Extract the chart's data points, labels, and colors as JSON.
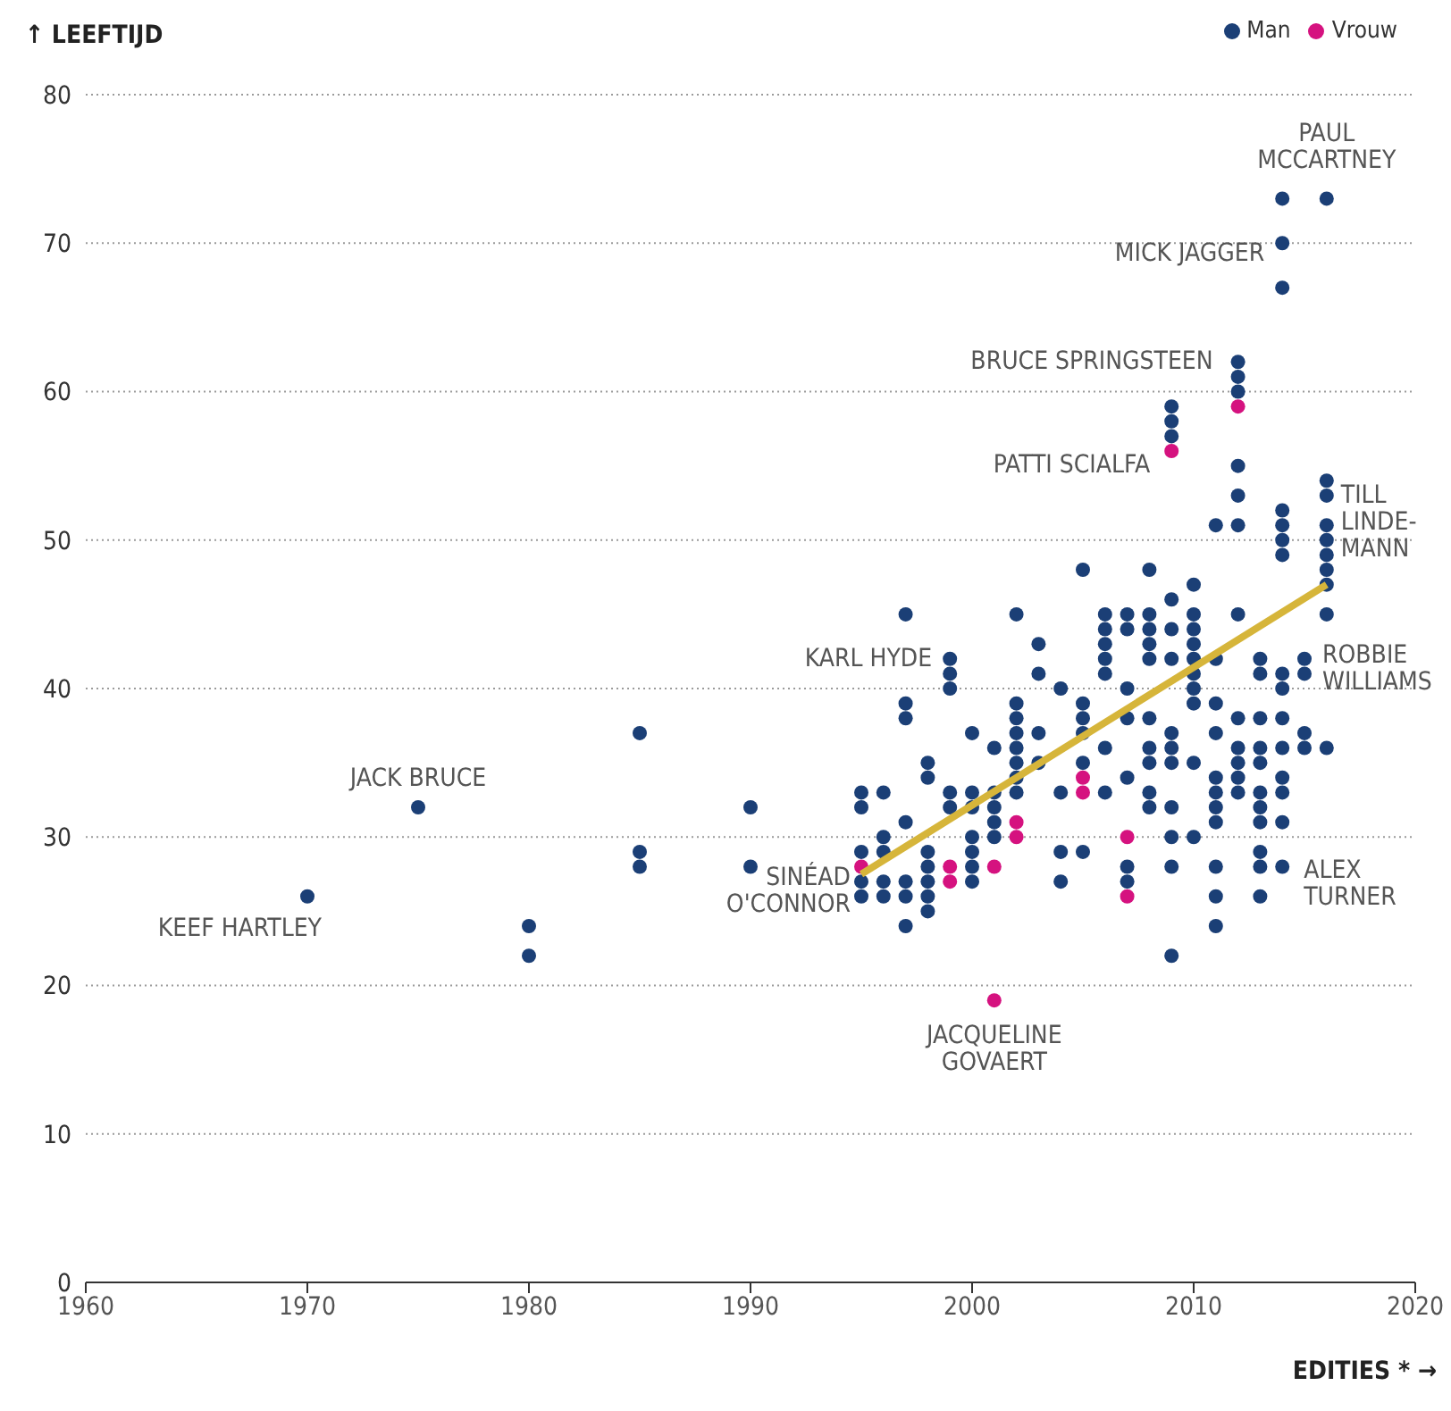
{
  "chart_data": {
    "type": "scatter",
    "xlabel": "EDITIES * →",
    "ylabel": "↑ LEEFTIJD",
    "xlim": [
      1960,
      2020
    ],
    "xticks": [
      1960,
      1970,
      1980,
      1990,
      2000,
      2010,
      2020
    ],
    "ylim": [
      0,
      80
    ],
    "yticks": [
      0,
      10,
      20,
      30,
      40,
      50,
      60,
      70,
      80
    ],
    "grid": "y",
    "legend": "top right",
    "marker": "circle",
    "series": [
      {
        "name": "Man",
        "color": "#1b3f76",
        "x": [
          1970,
          1975,
          1980,
          1980,
          1985,
          1985,
          1985,
          1990,
          1990,
          1995,
          1995,
          1995,
          1995,
          1995,
          1996,
          1996,
          1996,
          1996,
          1996,
          1997,
          1997,
          1997,
          1997,
          1997,
          1997,
          1997,
          1998,
          1998,
          1998,
          1998,
          1998,
          1998,
          1998,
          1999,
          1999,
          1999,
          1999,
          1999,
          2000,
          2000,
          2000,
          2000,
          2000,
          2000,
          2000,
          2001,
          2001,
          2001,
          2001,
          2001,
          2002,
          2002,
          2002,
          2002,
          2002,
          2002,
          2002,
          2002,
          2003,
          2003,
          2003,
          2003,
          2004,
          2004,
          2004,
          2004,
          2005,
          2005,
          2005,
          2005,
          2005,
          2005,
          2006,
          2006,
          2006,
          2006,
          2006,
          2006,
          2006,
          2007,
          2007,
          2007,
          2007,
          2007,
          2007,
          2007,
          2008,
          2008,
          2008,
          2008,
          2008,
          2008,
          2008,
          2008,
          2008,
          2008,
          2009,
          2009,
          2009,
          2009,
          2009,
          2009,
          2009,
          2009,
          2009,
          2009,
          2009,
          2009,
          2009,
          2010,
          2010,
          2010,
          2010,
          2010,
          2010,
          2010,
          2010,
          2010,
          2010,
          2011,
          2011,
          2011,
          2011,
          2011,
          2011,
          2011,
          2011,
          2011,
          2011,
          2011,
          2012,
          2012,
          2012,
          2012,
          2012,
          2012,
          2012,
          2012,
          2012,
          2012,
          2012,
          2012,
          2013,
          2013,
          2013,
          2013,
          2013,
          2013,
          2013,
          2013,
          2013,
          2013,
          2013,
          2014,
          2014,
          2014,
          2014,
          2014,
          2014,
          2014,
          2014,
          2014,
          2014,
          2014,
          2014,
          2014,
          2014,
          2014,
          2015,
          2015,
          2015,
          2015,
          2016,
          2016,
          2016,
          2016,
          2016,
          2016,
          2016,
          2016,
          2016,
          2016
        ],
        "values": [
          26,
          32,
          24,
          22,
          37,
          29,
          28,
          32,
          28,
          33,
          32,
          29,
          27,
          26,
          33,
          30,
          29,
          27,
          26,
          45,
          39,
          38,
          31,
          27,
          26,
          24,
          35,
          34,
          29,
          28,
          27,
          26,
          25,
          42,
          41,
          40,
          33,
          32,
          37,
          33,
          32,
          30,
          29,
          28,
          27,
          36,
          33,
          32,
          31,
          30,
          45,
          39,
          38,
          37,
          36,
          35,
          34,
          33,
          43,
          41,
          37,
          35,
          40,
          33,
          29,
          27,
          48,
          39,
          38,
          37,
          35,
          29,
          45,
          44,
          43,
          42,
          41,
          36,
          33,
          45,
          44,
          40,
          38,
          34,
          28,
          27,
          48,
          45,
          44,
          43,
          42,
          38,
          36,
          35,
          33,
          32,
          59,
          58,
          57,
          46,
          44,
          42,
          37,
          36,
          35,
          32,
          30,
          28,
          22,
          47,
          45,
          44,
          43,
          42,
          41,
          40,
          39,
          35,
          30,
          51,
          42,
          39,
          37,
          34,
          33,
          32,
          31,
          28,
          26,
          24,
          62,
          61,
          60,
          55,
          53,
          51,
          45,
          38,
          36,
          35,
          34,
          33,
          42,
          41,
          38,
          36,
          35,
          33,
          32,
          31,
          29,
          28,
          26,
          73,
          70,
          67,
          52,
          51,
          50,
          49,
          41,
          40,
          38,
          36,
          34,
          33,
          31,
          28,
          42,
          41,
          37,
          36,
          73,
          54,
          53,
          51,
          50,
          49,
          48,
          47,
          45,
          36
        ]
      },
      {
        "name": "Vrouw",
        "color": "#d5127f",
        "x": [
          1995,
          1999,
          1999,
          2001,
          2001,
          2002,
          2002,
          2005,
          2005,
          2007,
          2007,
          2009,
          2012
        ],
        "values": [
          28,
          28,
          27,
          28,
          19,
          31,
          30,
          34,
          33,
          30,
          26,
          56,
          59
        ]
      },
      {
        "type": "line",
        "color": "#d6b53a",
        "marker": "none",
        "x": [
          1995,
          2016
        ],
        "values": [
          27.5,
          47
        ]
      }
    ],
    "annotations": [
      {
        "text": "KEEF HARTLEY",
        "x": 1970,
        "y": 26
      },
      {
        "text": "JACK BRUCE",
        "x": 1975,
        "y": 32
      },
      {
        "text": "SINÉAD\nO'CONNOR",
        "x": 1995,
        "y": 28
      },
      {
        "text": "KARL HYDE",
        "x": 1999,
        "y": 42
      },
      {
        "text": "JACQUELINE\nGOVAERT",
        "x": 2001,
        "y": 19
      },
      {
        "text": "PATTI SCIALFA",
        "x": 2009,
        "y": 56
      },
      {
        "text": "BRUCE SPRINGSTEEN",
        "x": 2012,
        "y": 62
      },
      {
        "text": "MICK JAGGER",
        "x": 2014,
        "y": 70
      },
      {
        "text": "PAUL\nMCCARTNEY",
        "x": 2016,
        "y": 73
      },
      {
        "text": "TILL\nLINDE-\nMANN",
        "x": 2016,
        "y": 53
      },
      {
        "text": "ROBBIE\nWILLIAMS",
        "x": 2015,
        "y": 42
      },
      {
        "text": "ALEX\nTURNER",
        "x": 2014,
        "y": 28
      }
    ]
  }
}
